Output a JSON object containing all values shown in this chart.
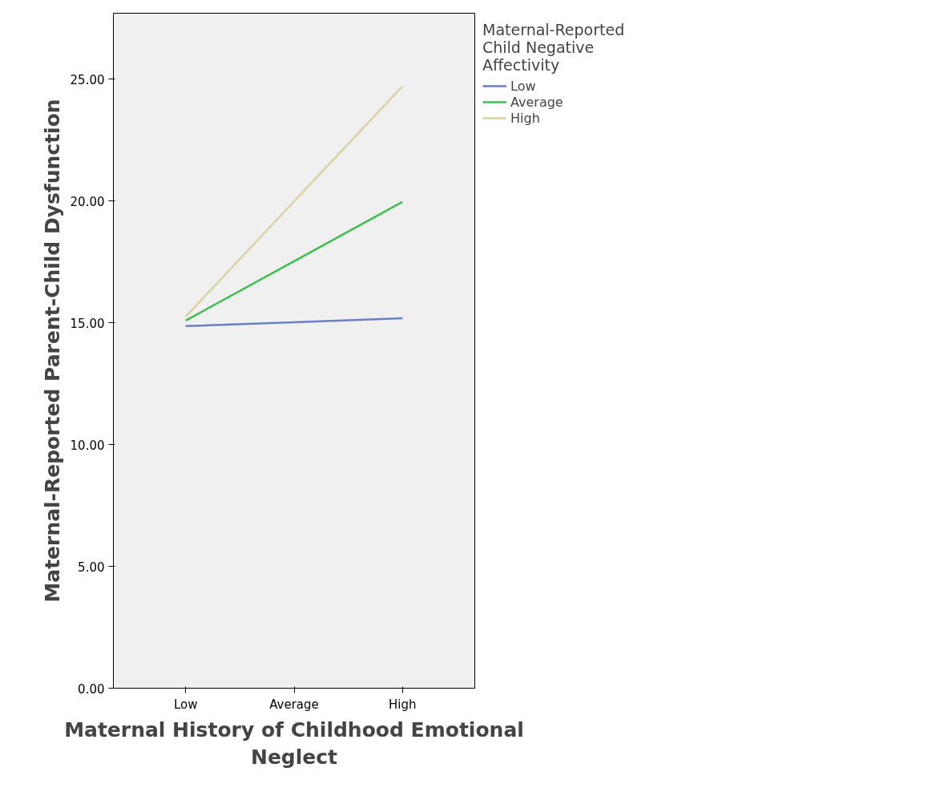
{
  "chart_data": {
    "type": "line",
    "xlabel": "Maternal History of Childhood Emotional Neglect",
    "ylabel": "Maternal-Reported Parent-Child Dysfunction",
    "legend_title": "Maternal-Reported Child Negative Affectivity",
    "categories": [
      "Low",
      "Average",
      "High"
    ],
    "series": [
      {
        "name": "Low",
        "color": "#6a7fc8",
        "values": [
          14.86,
          15.02,
          15.18
        ]
      },
      {
        "name": "Average",
        "color": "#3cbf4f",
        "values": [
          15.09,
          17.52,
          19.96
        ]
      },
      {
        "name": "High",
        "color": "#d9d3a3",
        "values": [
          15.25,
          19.98,
          24.7
        ]
      }
    ],
    "ylim": [
      0,
      27.7
    ],
    "yticks": [
      {
        "value": 0,
        "label": "0.00"
      },
      {
        "value": 5,
        "label": "5.00"
      },
      {
        "value": 10,
        "label": "10.00"
      },
      {
        "value": 15,
        "label": "15.00"
      },
      {
        "value": 20,
        "label": "20.00"
      },
      {
        "value": 25,
        "label": "25.00"
      }
    ],
    "grid": false,
    "legend": "top right",
    "marker": "none",
    "line_style": "solid"
  }
}
